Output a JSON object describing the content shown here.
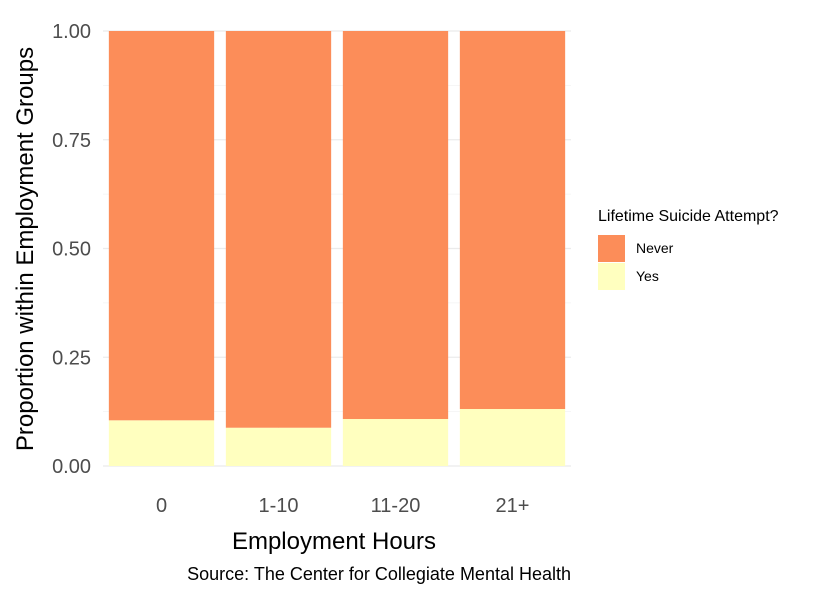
{
  "chart_data": {
    "type": "bar",
    "stacked": true,
    "categories": [
      "0",
      "1-10",
      "11-20",
      "21+"
    ],
    "series": [
      {
        "name": "Yes",
        "values": [
          0.105,
          0.088,
          0.108,
          0.131
        ],
        "color": "#FFFFBF"
      },
      {
        "name": "Never",
        "values": [
          0.895,
          0.912,
          0.892,
          0.869
        ],
        "color": "#FC8D59"
      }
    ],
    "xlabel": "Employment Hours",
    "ylabel": "Proportion within Employment Groups",
    "ylim": [
      0,
      1
    ],
    "yticks": [
      "0.00",
      "0.25",
      "0.50",
      "0.75",
      "1.00"
    ],
    "ytick_values": [
      0,
      0.25,
      0.5,
      0.75,
      1
    ],
    "legend": {
      "title": "Lifetime Suicide Attempt?",
      "entries": [
        "Never",
        "Yes"
      ],
      "position": "right"
    },
    "caption": "Source: The Center for Collegiate Mental Health",
    "grid": true
  }
}
